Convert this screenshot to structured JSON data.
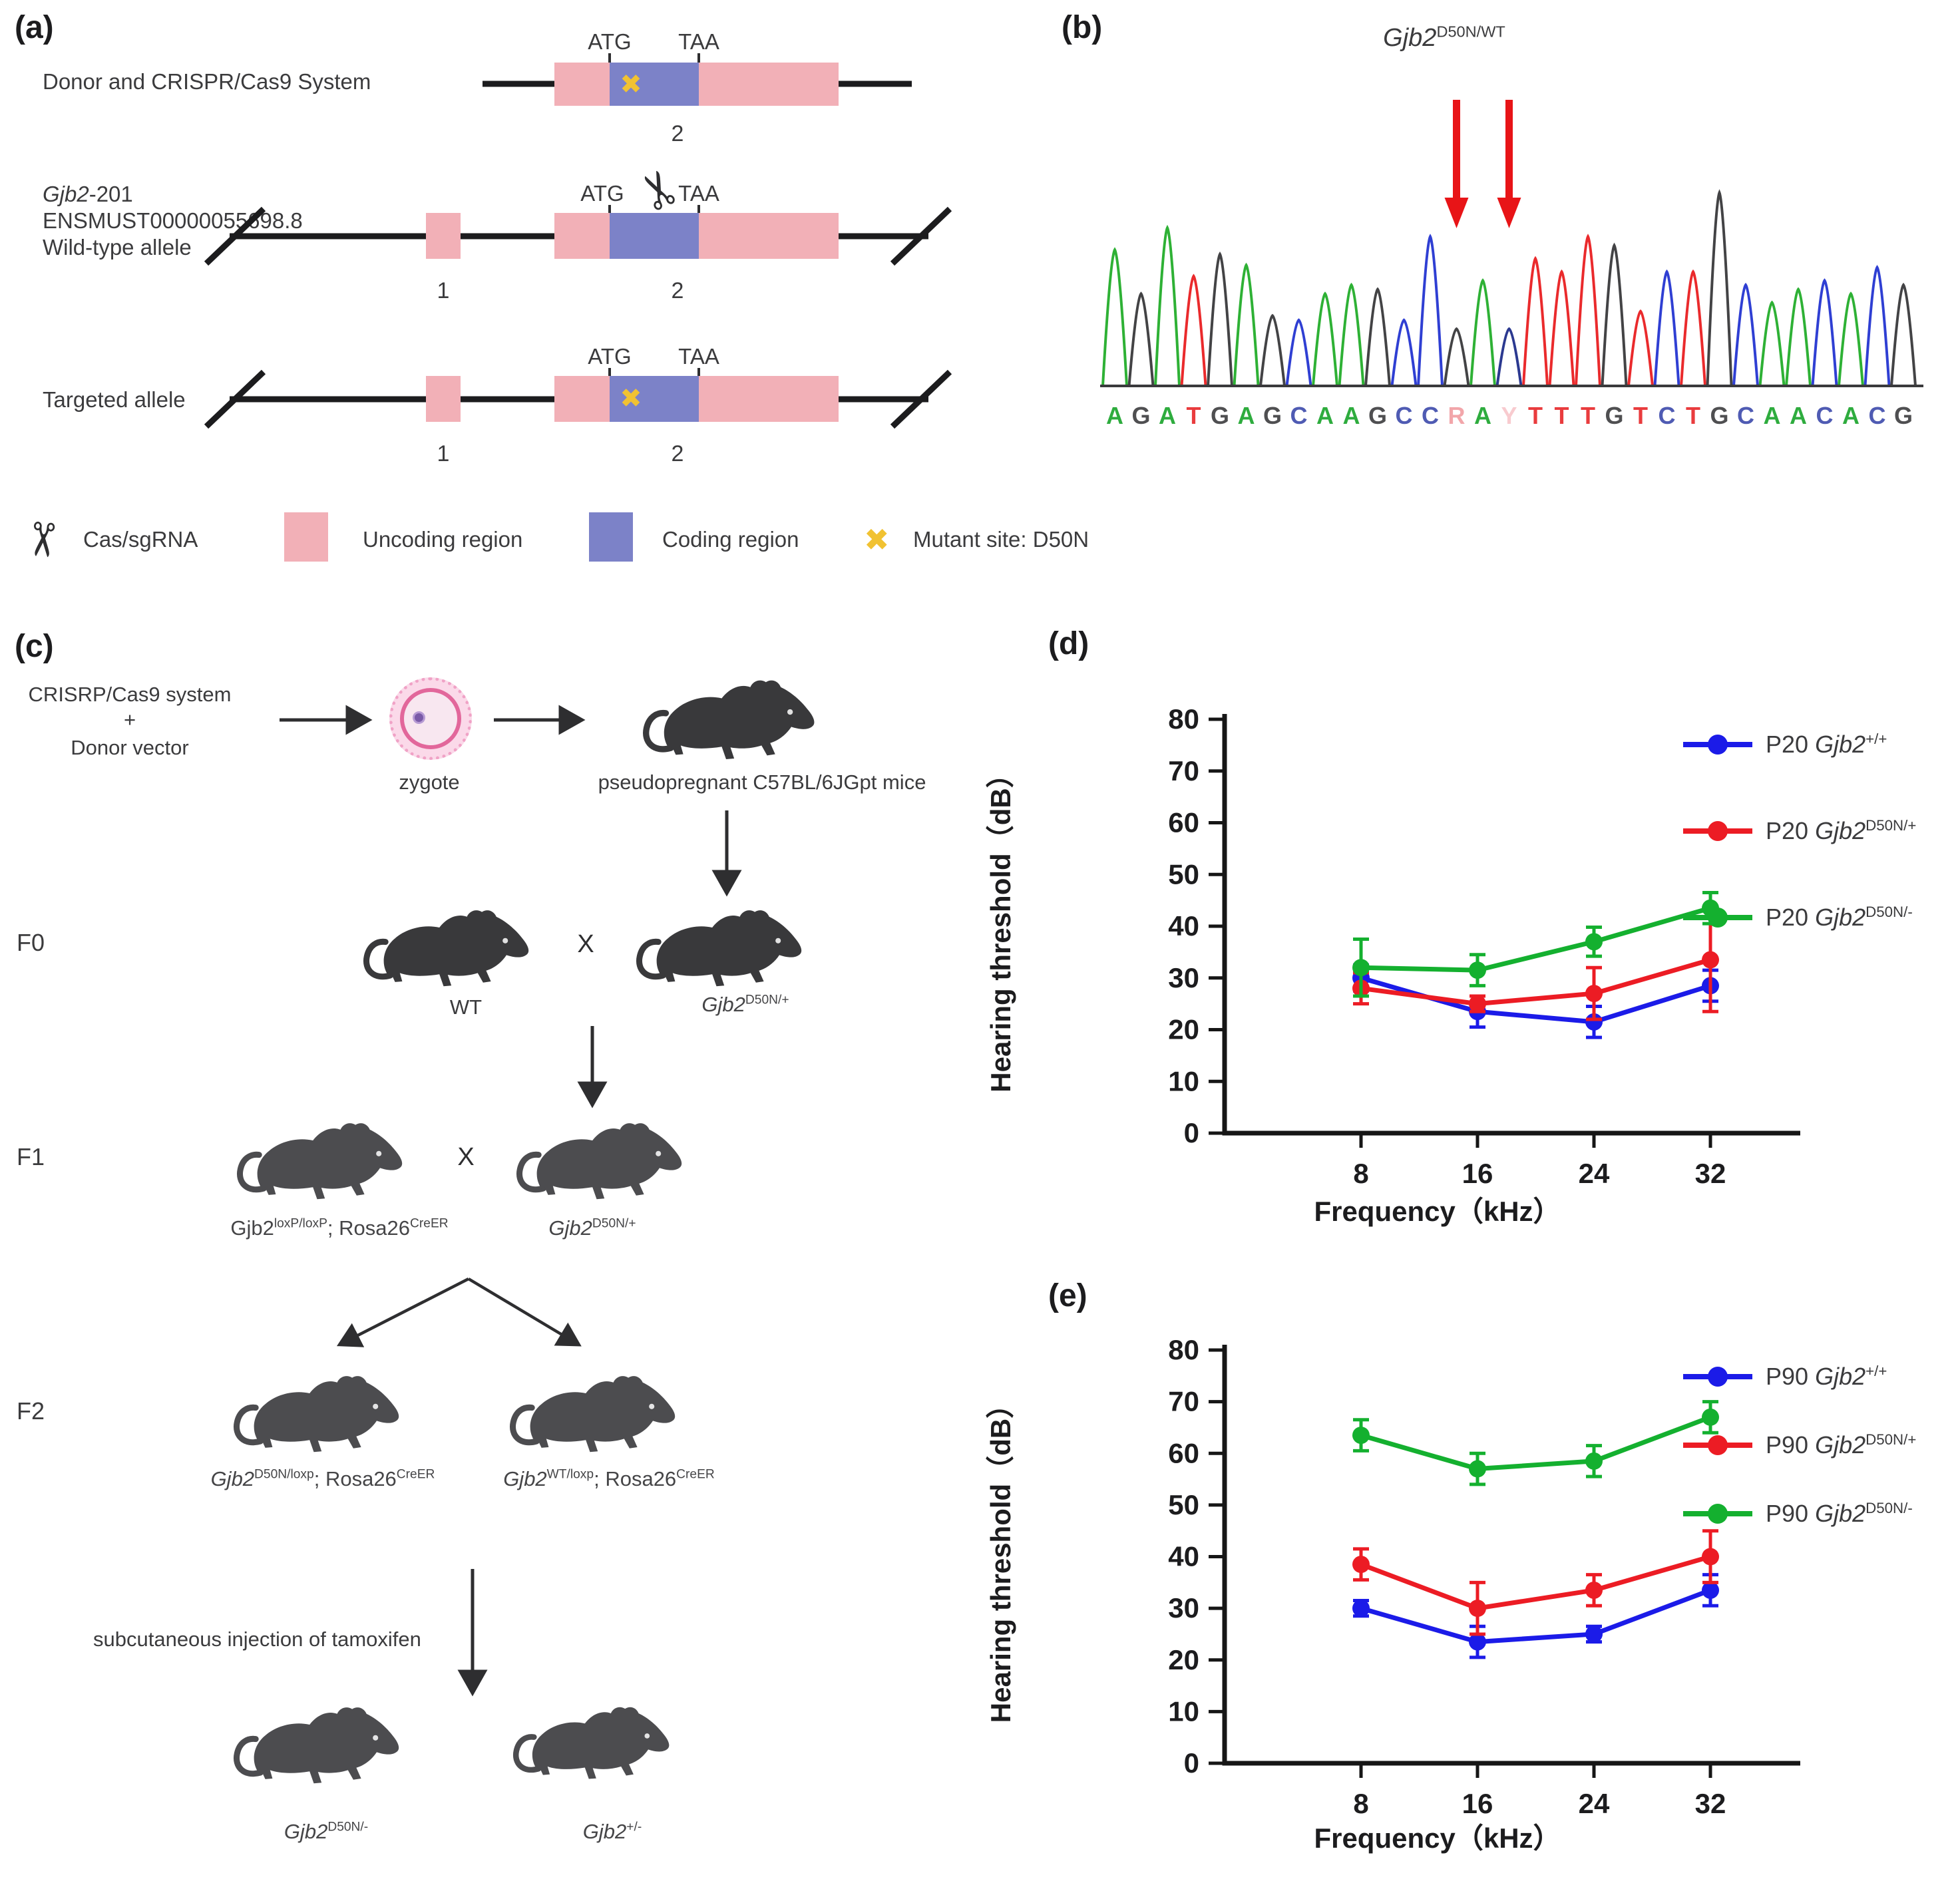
{
  "panels": {
    "a": "(a)",
    "b": "(b)",
    "c": "(c)",
    "d": "(d)",
    "e": "(e)"
  },
  "panel_a": {
    "row1_label": "Donor and CRISPR/Cas9 System",
    "row2_line1_runs": [
      {
        "t": "Gjb2",
        "i": true
      },
      {
        "t": "-201"
      }
    ],
    "row2_line2": "ENSMUST00000055698.8",
    "row2_line3": "Wild-type allele",
    "row3_label": "Targeted allele",
    "atg": "ATG",
    "taa": "TAA",
    "exon1": "1",
    "exon2": "2",
    "mutant_marker": "✖",
    "uncoding_color": "#f2b0b7",
    "coding_color": "#7c82c8",
    "mutant_color": "#f1c232",
    "legend": [
      {
        "label": "Cas/sgRNA"
      },
      {
        "label": "Uncoding region",
        "color": "#f2b0b7"
      },
      {
        "label": "Coding region",
        "color": "#7c82c8"
      },
      {
        "label": "Mutant site: D50N",
        "color": "#f1c232"
      }
    ]
  },
  "panel_b": {
    "title_runs": [
      {
        "t": "Gjb2",
        "i": true
      },
      {
        "t": "D50N/WT",
        "sup": true
      }
    ],
    "sequence": [
      "A",
      "G",
      "A",
      "T",
      "G",
      "A",
      "G",
      "C",
      "A",
      "A",
      "G",
      "C",
      "C",
      "R",
      "A",
      "Y",
      "T",
      "T",
      "T",
      "G",
      "T",
      "C",
      "T",
      "G",
      "C",
      "A",
      "A",
      "C",
      "A",
      "C",
      "G"
    ],
    "peak_heights": [
      0.62,
      0.42,
      0.72,
      0.5,
      0.6,
      0.55,
      0.32,
      0.3,
      0.42,
      0.46,
      0.44,
      0.3,
      0.68,
      0.26,
      0.48,
      0.26,
      0.58,
      0.52,
      0.68,
      0.64,
      0.34,
      0.52,
      0.52,
      0.88,
      0.46,
      0.38,
      0.44,
      0.48,
      0.42,
      0.54,
      0.46
    ],
    "base_letter_colors": {
      "A": "#2eac3e",
      "G": "#4f4f51",
      "C": "#4f5bb3",
      "T": "#e93c3e",
      "R": "#f2a6aa",
      "Y": "#f8cbcf"
    },
    "base_peak_colors": {
      "A": "#2eb135",
      "G": "#434345",
      "C": "#2f3fd3",
      "T": "#ea2a2c",
      "R": "#434345",
      "Y": "#2b3990"
    },
    "arrow_indices": [
      13,
      15
    ],
    "arrow_color": "#e81417"
  },
  "panel_c": {
    "input_line1": "CRISRP/Cas9 system",
    "input_plus": "+",
    "input_line2": "Donor vector",
    "zygote_label": "zygote",
    "mice_label": "pseudopregnant C57BL/6JGpt mice",
    "f0": "F0",
    "f1": "F1",
    "f2": "F2",
    "cross": "X",
    "wt_label": "WT",
    "f0_right_runs": [
      {
        "t": "Gjb2",
        "i": true
      },
      {
        "t": "D50N/+",
        "sup": true
      }
    ],
    "f1_left_runs": [
      {
        "t": "Gjb2"
      },
      {
        "t": "loxP/loxP",
        "sup": true
      },
      {
        "t": "; Rosa26"
      },
      {
        "t": "CreER",
        "sup": true
      }
    ],
    "f1_right_runs": [
      {
        "t": "Gjb2",
        "i": true
      },
      {
        "t": "D50N/+",
        "sup": true
      }
    ],
    "f2_left_runs": [
      {
        "t": "Gjb2",
        "i": true
      },
      {
        "t": "D50N/loxp",
        "sup": true
      },
      {
        "t": "; Rosa26"
      },
      {
        "t": "CreER",
        "sup": true
      }
    ],
    "f2_right_runs": [
      {
        "t": "Gjb2",
        "i": true
      },
      {
        "t": "WT/loxp",
        "sup": true
      },
      {
        "t": "; Rosa26"
      },
      {
        "t": "CreER",
        "sup": true
      }
    ],
    "tamoxifen_label": "subcutaneous injection of tamoxifen",
    "final_left_runs": [
      {
        "t": "Gjb2",
        "i": true
      },
      {
        "t": "D50N/-",
        "sup": true
      }
    ],
    "final_right_runs": [
      {
        "t": "Gjb2",
        "i": true
      },
      {
        "t": "+/-",
        "sup": true
      }
    ]
  },
  "chart_data": [
    {
      "id": "d",
      "type": "line",
      "panel": "(d)",
      "x_label": "Frequency（kHz）",
      "y_label": "Hearing threshold（dB）",
      "x_ticks": [
        8,
        16,
        24,
        32
      ],
      "y_range": [
        0,
        80
      ],
      "y_tick_step": 10,
      "grid": false,
      "legend_position": "right-top",
      "series": [
        {
          "name_runs": [
            {
              "t": "P20 "
            },
            {
              "t": "Gjb2",
              "i": true
            },
            {
              "t": "+/+",
              "sup": true
            }
          ],
          "color": "#1b1be8",
          "values": [
            30,
            23.5,
            21.5,
            28.5
          ],
          "errors": [
            2.5,
            3,
            3,
            3
          ]
        },
        {
          "name_runs": [
            {
              "t": "P20 "
            },
            {
              "t": "Gjb2",
              "i": true
            },
            {
              "t": "D50N/+",
              "sup": true
            }
          ],
          "color": "#ec1c24",
          "values": [
            28,
            25,
            27,
            33.5
          ],
          "errors": [
            3,
            1.5,
            5,
            10
          ]
        },
        {
          "name_runs": [
            {
              "t": "P20 "
            },
            {
              "t": "Gjb2",
              "i": true
            },
            {
              "t": "D50N/-",
              "sup": true
            }
          ],
          "color": "#14b02f",
          "values": [
            32,
            31.5,
            37,
            43.5
          ],
          "errors": [
            5.5,
            3,
            2.8,
            3
          ]
        }
      ]
    },
    {
      "id": "e",
      "type": "line",
      "panel": "(e)",
      "x_label": "Frequency（kHz）",
      "y_label": "Hearing threshold（dB）",
      "x_ticks": [
        8,
        16,
        24,
        32
      ],
      "y_range": [
        0,
        80
      ],
      "y_tick_step": 10,
      "grid": false,
      "legend_position": "right-top",
      "series": [
        {
          "name_runs": [
            {
              "t": "P90 "
            },
            {
              "t": "Gjb2",
              "i": true
            },
            {
              "t": "+/+",
              "sup": true
            }
          ],
          "color": "#1b1be8",
          "values": [
            30,
            23.5,
            25,
            33.5
          ],
          "errors": [
            1.5,
            3,
            1.5,
            3
          ]
        },
        {
          "name_runs": [
            {
              "t": "P90 "
            },
            {
              "t": "Gjb2",
              "i": true
            },
            {
              "t": "D50N/+",
              "sup": true
            }
          ],
          "color": "#ec1c24",
          "values": [
            38.5,
            30,
            33.5,
            40
          ],
          "errors": [
            3,
            5,
            3,
            5
          ]
        },
        {
          "name_runs": [
            {
              "t": "P90 "
            },
            {
              "t": "Gjb2",
              "i": true
            },
            {
              "t": "D50N/-",
              "sup": true
            }
          ],
          "color": "#14b02f",
          "values": [
            63.5,
            57,
            58.5,
            67
          ],
          "errors": [
            3,
            3,
            3,
            3
          ]
        }
      ]
    }
  ]
}
